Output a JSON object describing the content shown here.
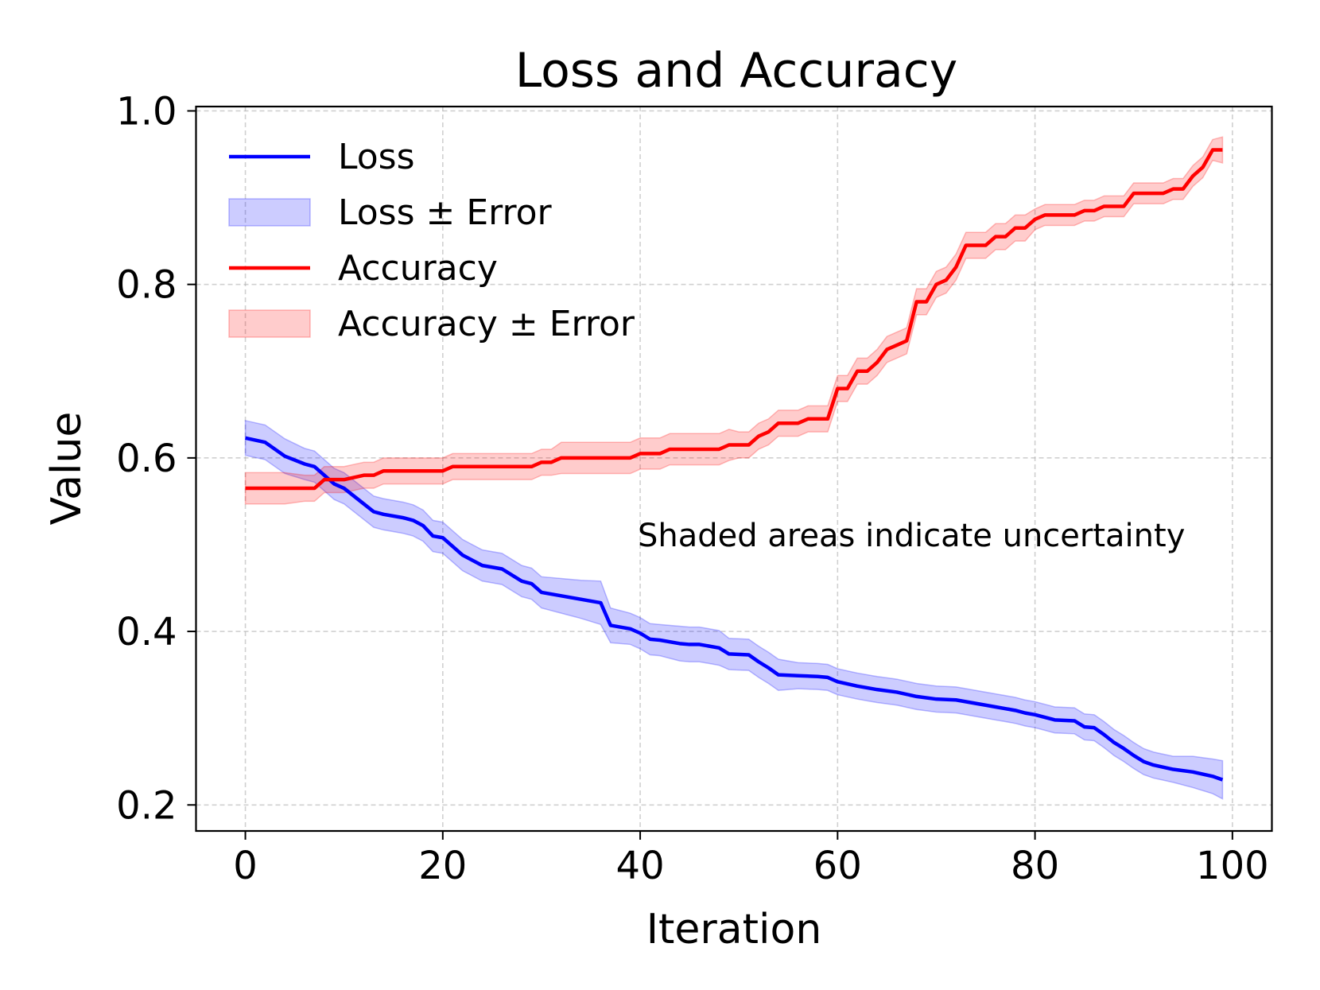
{
  "chart_data": {
    "type": "line",
    "title": "Loss and Accuracy",
    "xlabel": "Iteration",
    "ylabel": "Value",
    "xlim": [
      -5,
      104
    ],
    "ylim": [
      0.17,
      1.005
    ],
    "xticks": [
      0,
      20,
      40,
      60,
      80,
      100
    ],
    "xtick_labels": [
      "0",
      "20",
      "40",
      "60",
      "80",
      "100"
    ],
    "yticks": [
      0.2,
      0.4,
      0.6,
      0.8,
      1.0
    ],
    "ytick_labels": [
      "0.2",
      "0.4",
      "0.6",
      "0.8",
      "1.0"
    ],
    "grid": true,
    "legend_position": "top-left",
    "legend": [
      "Loss",
      "Loss ± Error",
      "Accuracy",
      "Accuracy ± Error"
    ],
    "annotation": "Shaded areas indicate uncertainty",
    "series": [
      {
        "name": "Loss",
        "band_name": "Loss ± Error",
        "color": "#0000ff",
        "band_color": "#0000ff",
        "x": [
          0,
          2,
          4,
          6,
          7,
          8,
          9,
          10,
          12,
          13,
          14,
          16,
          17,
          18,
          19,
          20,
          22,
          24,
          26,
          28,
          29,
          30,
          32,
          34,
          36,
          37,
          39,
          40,
          41,
          42,
          44,
          45,
          46,
          48,
          49,
          51,
          52,
          53,
          54,
          56,
          58,
          59,
          60,
          62,
          64,
          66,
          68,
          70,
          72,
          74,
          76,
          77,
          78,
          79,
          80,
          82,
          84,
          85,
          86,
          87,
          88,
          89,
          90,
          91,
          92,
          94,
          96,
          98,
          99
        ],
        "y": [
          0.623,
          0.618,
          0.602,
          0.593,
          0.59,
          0.58,
          0.57,
          0.565,
          0.547,
          0.538,
          0.535,
          0.531,
          0.528,
          0.522,
          0.51,
          0.508,
          0.488,
          0.476,
          0.472,
          0.458,
          0.455,
          0.445,
          0.441,
          0.437,
          0.433,
          0.407,
          0.403,
          0.398,
          0.391,
          0.39,
          0.386,
          0.385,
          0.385,
          0.381,
          0.374,
          0.373,
          0.365,
          0.358,
          0.35,
          0.349,
          0.348,
          0.347,
          0.342,
          0.337,
          0.333,
          0.33,
          0.325,
          0.322,
          0.321,
          0.317,
          0.313,
          0.311,
          0.309,
          0.306,
          0.304,
          0.298,
          0.297,
          0.29,
          0.289,
          0.281,
          0.272,
          0.265,
          0.257,
          0.25,
          0.246,
          0.241,
          0.238,
          0.233,
          0.229
        ],
        "err": [
          0.02,
          0.02,
          0.02,
          0.018,
          0.018,
          0.018,
          0.018,
          0.018,
          0.018,
          0.018,
          0.018,
          0.018,
          0.018,
          0.018,
          0.018,
          0.018,
          0.018,
          0.018,
          0.018,
          0.018,
          0.018,
          0.018,
          0.02,
          0.022,
          0.025,
          0.02,
          0.018,
          0.018,
          0.018,
          0.018,
          0.02,
          0.02,
          0.02,
          0.02,
          0.018,
          0.018,
          0.018,
          0.018,
          0.018,
          0.015,
          0.015,
          0.015,
          0.015,
          0.015,
          0.015,
          0.015,
          0.015,
          0.015,
          0.015,
          0.015,
          0.015,
          0.015,
          0.015,
          0.015,
          0.015,
          0.015,
          0.015,
          0.015,
          0.015,
          0.015,
          0.015,
          0.015,
          0.015,
          0.015,
          0.015,
          0.015,
          0.018,
          0.02,
          0.022
        ]
      },
      {
        "name": "Accuracy",
        "band_name": "Accuracy ± Error",
        "color": "#ff0000",
        "band_color": "#ff0000",
        "x": [
          0,
          2,
          4,
          6,
          7,
          8,
          9,
          10,
          12,
          13,
          14,
          16,
          18,
          20,
          21,
          22,
          24,
          26,
          28,
          29,
          30,
          31,
          32,
          34,
          36,
          38,
          39,
          40,
          42,
          43,
          44,
          46,
          48,
          49,
          50,
          51,
          52,
          53,
          54,
          55,
          56,
          57,
          58,
          59,
          60,
          61,
          62,
          63,
          64,
          65,
          66,
          67,
          68,
          69,
          70,
          71,
          72,
          73,
          74,
          75,
          76,
          77,
          78,
          79,
          80,
          81,
          82,
          84,
          85,
          86,
          87,
          88,
          89,
          90,
          91,
          92,
          93,
          94,
          95,
          96,
          97,
          98,
          99
        ],
        "y": [
          0.565,
          0.565,
          0.565,
          0.565,
          0.565,
          0.575,
          0.575,
          0.575,
          0.58,
          0.58,
          0.585,
          0.585,
          0.585,
          0.585,
          0.59,
          0.59,
          0.59,
          0.59,
          0.59,
          0.59,
          0.595,
          0.595,
          0.6,
          0.6,
          0.6,
          0.6,
          0.6,
          0.605,
          0.605,
          0.61,
          0.61,
          0.61,
          0.61,
          0.615,
          0.615,
          0.615,
          0.625,
          0.63,
          0.64,
          0.64,
          0.64,
          0.645,
          0.645,
          0.645,
          0.68,
          0.68,
          0.7,
          0.7,
          0.71,
          0.725,
          0.73,
          0.735,
          0.78,
          0.78,
          0.8,
          0.805,
          0.82,
          0.845,
          0.845,
          0.845,
          0.855,
          0.855,
          0.865,
          0.865,
          0.875,
          0.88,
          0.88,
          0.88,
          0.885,
          0.885,
          0.89,
          0.89,
          0.89,
          0.905,
          0.905,
          0.905,
          0.905,
          0.91,
          0.91,
          0.925,
          0.935,
          0.955,
          0.955
        ],
        "err": [
          0.018,
          0.018,
          0.018,
          0.015,
          0.015,
          0.015,
          0.015,
          0.015,
          0.015,
          0.015,
          0.015,
          0.015,
          0.015,
          0.015,
          0.015,
          0.015,
          0.015,
          0.015,
          0.015,
          0.015,
          0.015,
          0.015,
          0.018,
          0.018,
          0.018,
          0.018,
          0.018,
          0.018,
          0.018,
          0.018,
          0.018,
          0.018,
          0.018,
          0.018,
          0.015,
          0.015,
          0.015,
          0.015,
          0.015,
          0.015,
          0.015,
          0.015,
          0.015,
          0.015,
          0.015,
          0.015,
          0.015,
          0.015,
          0.015,
          0.015,
          0.015,
          0.015,
          0.015,
          0.015,
          0.015,
          0.015,
          0.015,
          0.015,
          0.015,
          0.015,
          0.015,
          0.015,
          0.015,
          0.015,
          0.012,
          0.012,
          0.012,
          0.012,
          0.012,
          0.012,
          0.012,
          0.012,
          0.012,
          0.012,
          0.012,
          0.012,
          0.012,
          0.012,
          0.012,
          0.012,
          0.012,
          0.012,
          0.015
        ]
      }
    ]
  }
}
